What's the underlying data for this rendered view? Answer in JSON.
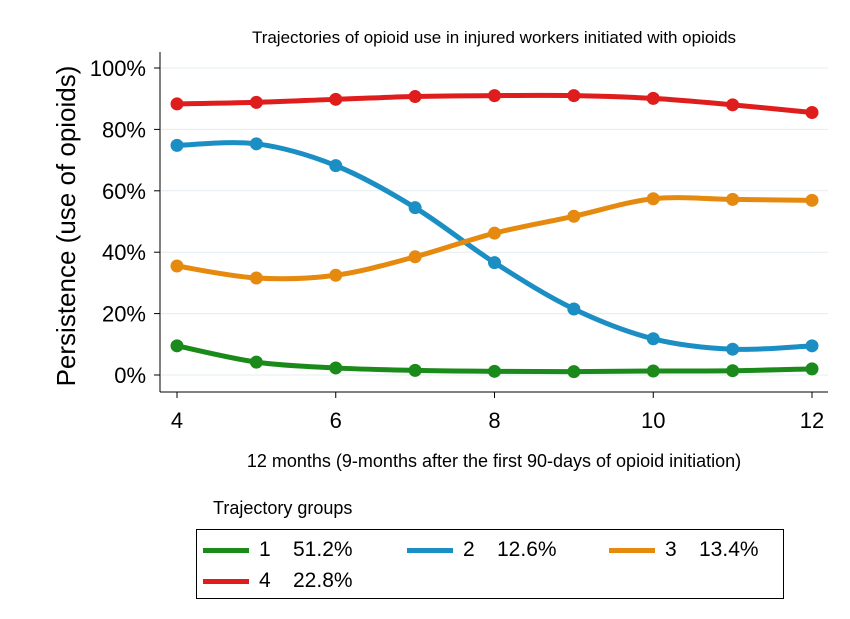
{
  "chart_data": {
    "type": "line",
    "title": "Trajectories of opioid use in injured workers initiated with opioids",
    "xlabel": "12 months (9-months after the first 90-days of opioid initiation)",
    "ylabel": "Persistence (use of opioids)",
    "xlim": [
      4,
      12
    ],
    "ylim": [
      0,
      100
    ],
    "x_ticks": [
      4,
      6,
      8,
      10,
      12
    ],
    "y_ticks": [
      0,
      20,
      40,
      60,
      80,
      100
    ],
    "y_tick_labels": [
      "0%",
      "20%",
      "40%",
      "60%",
      "80%",
      "100%"
    ],
    "grid": true,
    "x": [
      4,
      5,
      6,
      7,
      8,
      9,
      10,
      11,
      12
    ],
    "series": [
      {
        "name": "1",
        "share": "51.2%",
        "color": "#1a8a1a",
        "values": [
          9.5,
          4.2,
          2.3,
          1.5,
          1.2,
          1.1,
          1.3,
          1.4,
          2.0
        ]
      },
      {
        "name": "2",
        "share": "12.6%",
        "color": "#1b8ec4",
        "values": [
          74.8,
          75.3,
          68.2,
          54.5,
          36.6,
          21.5,
          11.8,
          8.4,
          9.5
        ]
      },
      {
        "name": "3",
        "share": "13.4%",
        "color": "#e58a0f",
        "values": [
          35.5,
          31.6,
          32.5,
          38.5,
          46.2,
          51.7,
          57.4,
          57.2,
          56.9
        ]
      },
      {
        "name": "4",
        "share": "22.8%",
        "color": "#e01d1d",
        "values": [
          88.3,
          88.8,
          89.8,
          90.7,
          91.0,
          91.0,
          90.1,
          88.0,
          85.5
        ]
      }
    ],
    "legend": {
      "title": "Trajectory groups",
      "placement": "bottom"
    }
  }
}
